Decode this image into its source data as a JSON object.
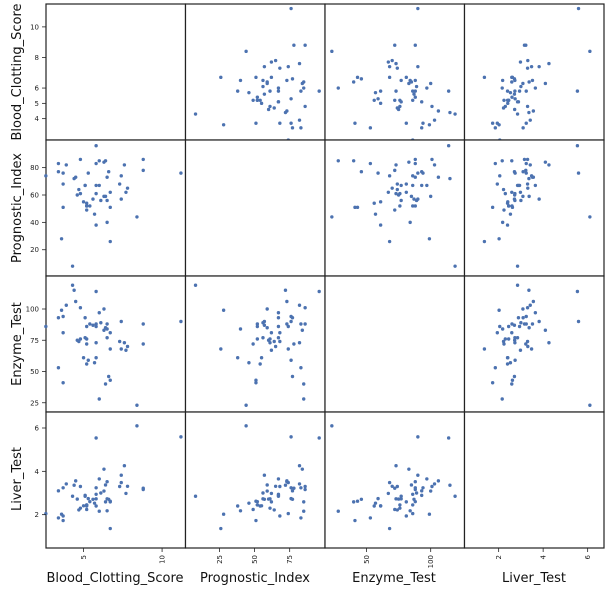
{
  "chart_data": {
    "type": "scatter",
    "variables": [
      "Blood_Clotting_Score",
      "Prognostic_Index",
      "Enzyme_Test",
      "Liver_Test"
    ],
    "axes": {
      "Blood_Clotting_Score": {
        "range": [
          2.8,
          11.3
        ],
        "ticks": [
          {
            "v": 4,
            "label": "4"
          },
          {
            "v": 5,
            "label": "5"
          },
          {
            "v": 6,
            "label": "6"
          },
          {
            "v": 8,
            "label": "8"
          },
          {
            "v": 10,
            "label": "10"
          }
        ]
      },
      "Prognostic_Index": {
        "range": [
          3,
          98
        ],
        "ticks": [
          {
            "v": 20,
            "label": "20"
          },
          {
            "v": 40,
            "label": "40"
          },
          {
            "v": 60,
            "label": "60"
          },
          {
            "v": 80,
            "label": "80"
          }
        ]
      },
      "Enzyme_Test": {
        "range": [
          20,
          124
        ],
        "ticks": [
          {
            "v": 25,
            "label": "25"
          },
          {
            "v": 50,
            "label": "50"
          },
          {
            "v": 75,
            "label": "75"
          },
          {
            "v": 100,
            "label": "100"
          }
        ]
      },
      "Liver_Test": {
        "range": [
          0.6,
          6.6
        ],
        "ticks": [
          {
            "v": 2,
            "label": "2"
          },
          {
            "v": 4,
            "label": "4"
          },
          {
            "v": 6,
            "label": "6"
          }
        ]
      }
    },
    "x_axis_ticks": {
      "Blood_Clotting_Score": [
        {
          "v": 5,
          "label": "5"
        },
        {
          "v": 10,
          "label": "10"
        }
      ],
      "Prognostic_Index": [
        {
          "v": 25,
          "label": "25"
        },
        {
          "v": 50,
          "label": "50"
        },
        {
          "v": 75,
          "label": "75"
        }
      ],
      "Enzyme_Test": [
        {
          "v": 50,
          "label": "50"
        },
        {
          "v": 100,
          "label": "100"
        }
      ],
      "Liver_Test": [
        {
          "v": 2,
          "label": "2"
        },
        {
          "v": 4,
          "label": "4"
        },
        {
          "v": 6,
          "label": "6"
        }
      ]
    },
    "diagonal": "empty",
    "grid": false,
    "legend": "none",
    "marker_color": "#4c72b0",
    "observations": [
      [
        6.7,
        62,
        81,
        2.59
      ],
      [
        5.1,
        67,
        93,
        2.89
      ],
      [
        7.4,
        57,
        90,
        3.82
      ],
      [
        6.5,
        73,
        88,
        3.52
      ],
      [
        7.8,
        65,
        70,
        3.31
      ],
      [
        5.8,
        38,
        61,
        2.4
      ],
      [
        5.7,
        46,
        57,
        2.53
      ],
      [
        3.7,
        68,
        81,
        1.94
      ],
      [
        6.0,
        67,
        97,
        3.65
      ],
      [
        3.7,
        76,
        94,
        3.24
      ],
      [
        6.3,
        84,
        83,
        4.1
      ],
      [
        6.7,
        51,
        43,
        2.62
      ],
      [
        5.8,
        96,
        114,
        5.54
      ],
      [
        5.8,
        83,
        88,
        3.24
      ],
      [
        7.7,
        62,
        67,
        2.98
      ],
      [
        7.4,
        74,
        68,
        3.48
      ],
      [
        6.0,
        85,
        28,
        2.16
      ],
      [
        3.7,
        51,
        41,
        1.73
      ],
      [
        7.3,
        68,
        74,
        3.3
      ],
      [
        5.6,
        57,
        87,
        2.71
      ],
      [
        5.2,
        52,
        76,
        2.45
      ],
      [
        3.4,
        83,
        53,
        1.85
      ],
      [
        6.7,
        26,
        68,
        1.36
      ],
      [
        5.8,
        67,
        86,
        2.94
      ],
      [
        6.3,
        59,
        100,
        3.09
      ],
      [
        5.8,
        61,
        73,
        2.73
      ],
      [
        5.2,
        52,
        86,
        2.45
      ],
      [
        11.2,
        76,
        90,
        5.59
      ],
      [
        5.2,
        54,
        56,
        2.4
      ],
      [
        5.3,
        76,
        59,
        2.74
      ],
      [
        2.6,
        74,
        86,
        2.05
      ],
      [
        4.3,
        8,
        119,
        2.85
      ],
      [
        4.8,
        61,
        76,
        2.3
      ],
      [
        5.4,
        52,
        88,
        2.6
      ],
      [
        5.2,
        49,
        72,
        2.24
      ],
      [
        3.6,
        28,
        99,
        2.02
      ],
      [
        8.8,
        86,
        88,
        3.16
      ],
      [
        6.5,
        56,
        77,
        2.73
      ],
      [
        3.4,
        77,
        93,
        3.1
      ],
      [
        6.5,
        40,
        84,
        2.18
      ],
      [
        4.5,
        73,
        106,
        3.56
      ],
      [
        4.8,
        86,
        101,
        3.3
      ],
      [
        5.1,
        67,
        77,
        2.85
      ],
      [
        3.9,
        82,
        103,
        3.42
      ],
      [
        6.6,
        77,
        46,
        2.71
      ],
      [
        6.4,
        85,
        40,
        2.59
      ],
      [
        6.4,
        59,
        85,
        3.37
      ],
      [
        8.8,
        78,
        72,
        3.22
      ],
      [
        6.1,
        56,
        89,
        3.0
      ],
      [
        4.7,
        64,
        74,
        2.22
      ],
      [
        5.0,
        55,
        61,
        2.41
      ],
      [
        4.6,
        60,
        75,
        2.72
      ],
      [
        8.4,
        44,
        23,
        6.1
      ],
      [
        7.6,
        82,
        73,
        4.26
      ],
      [
        4.4,
        72,
        115,
        3.36
      ]
    ]
  },
  "x_labels": [
    "Blood_Clotting_Score",
    "Prognostic_Index",
    "Enzyme_Test",
    "Liver_Test"
  ],
  "y_labels": [
    "Blood_Clotting_Score",
    "Prognostic_Index",
    "Enzyme_Test",
    "Liver_Test"
  ]
}
